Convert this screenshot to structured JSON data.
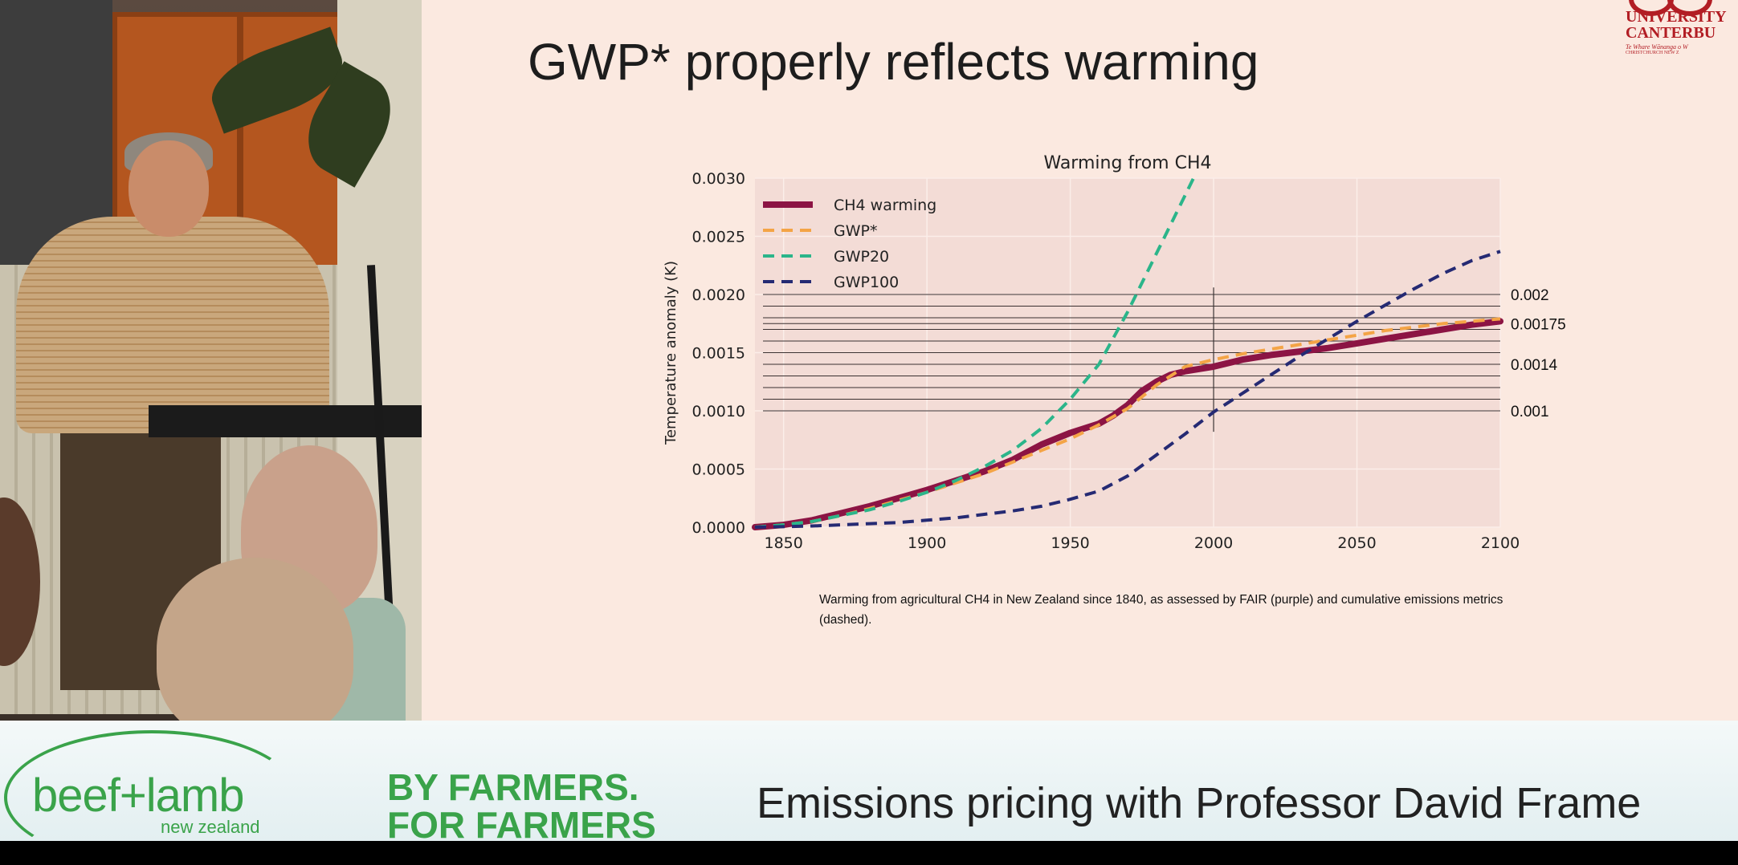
{
  "slide": {
    "title": "GWP* properly reflects warming",
    "caption": "Warming from agricultural CH4 in New Zealand since 1840, as assessed by FAIR (purple) and cumulative emissions metrics (dashed).",
    "logo": {
      "line1": "UNIVERSITY",
      "line2": "CANTERBU",
      "line3": "Te Whare Wānanga o W",
      "line4": "CHRISTCHURCH NEW Z"
    }
  },
  "chart_data": {
    "type": "line",
    "title": "Warming from CH4",
    "ylabel": "Temperature anomaly (K)",
    "xlabel": "",
    "xlim": [
      1840,
      2100
    ],
    "ylim": [
      0,
      0.003
    ],
    "x_ticks": [
      "1850",
      "1900",
      "1950",
      "2000",
      "2050",
      "2100"
    ],
    "y_ticks": [
      "0.0000",
      "0.0005",
      "0.0010",
      "0.0015",
      "0.0020",
      "0.0025",
      "0.0030"
    ],
    "legend_position": "top-left",
    "series": [
      {
        "name": "CH4 warming",
        "color": "#8c1444",
        "style": "solid",
        "x": [
          1840,
          1850,
          1860,
          1870,
          1880,
          1890,
          1900,
          1910,
          1920,
          1930,
          1940,
          1950,
          1960,
          1965,
          1970,
          1975,
          1980,
          1985,
          1990,
          2000,
          2010,
          2020,
          2030,
          2040,
          2050,
          2060,
          2070,
          2080,
          2090,
          2100
        ],
        "y": [
          0.0,
          2e-05,
          6e-05,
          0.00012,
          0.00018,
          0.00025,
          0.00032,
          0.0004,
          0.00048,
          0.00058,
          0.00071,
          0.00081,
          0.00089,
          0.00096,
          0.00105,
          0.00117,
          0.00125,
          0.00131,
          0.00134,
          0.00138,
          0.00144,
          0.00148,
          0.00151,
          0.00154,
          0.00158,
          0.00162,
          0.00166,
          0.0017,
          0.00174,
          0.00177
        ]
      },
      {
        "name": "GWP*",
        "color": "#f4a446",
        "style": "dashed",
        "x": [
          1840,
          1850,
          1860,
          1870,
          1880,
          1890,
          1900,
          1910,
          1920,
          1930,
          1940,
          1950,
          1960,
          1970,
          1980,
          1990,
          2000,
          2010,
          2020,
          2030,
          2040,
          2050,
          2060,
          2070,
          2080,
          2090,
          2100
        ],
        "y": [
          0.0,
          2e-05,
          5e-05,
          0.0001,
          0.00016,
          0.00023,
          0.0003,
          0.00038,
          0.00046,
          0.00056,
          0.00066,
          0.00076,
          0.00088,
          0.00102,
          0.00122,
          0.00138,
          0.00144,
          0.00149,
          0.00153,
          0.00157,
          0.00161,
          0.00165,
          0.00169,
          0.00172,
          0.00175,
          0.00177,
          0.00179
        ]
      },
      {
        "name": "GWP20",
        "color": "#2bb58a",
        "style": "dashed",
        "x": [
          1840,
          1850,
          1860,
          1870,
          1880,
          1890,
          1900,
          1910,
          1920,
          1930,
          1940,
          1950,
          1960,
          1970,
          1980,
          1990,
          1993
        ],
        "y": [
          0.0,
          2e-05,
          5e-05,
          0.0001,
          0.00015,
          0.00022,
          0.0003,
          0.0004,
          0.00052,
          0.00066,
          0.00085,
          0.0011,
          0.0014,
          0.00185,
          0.00235,
          0.00285,
          0.003
        ]
      },
      {
        "name": "GWP100",
        "color": "#252a73",
        "style": "dashed",
        "x": [
          1840,
          1850,
          1860,
          1870,
          1880,
          1890,
          1900,
          1910,
          1920,
          1930,
          1940,
          1950,
          1960,
          1970,
          1980,
          1990,
          2000,
          2010,
          2020,
          2030,
          2040,
          2050,
          2060,
          2070,
          2080,
          2090,
          2100
        ],
        "y": [
          0.0,
          5e-06,
          1e-05,
          2e-05,
          3e-05,
          4e-05,
          6e-05,
          8e-05,
          0.00011,
          0.00014,
          0.00018,
          0.00024,
          0.00031,
          0.00044,
          0.00062,
          0.0008,
          0.00099,
          0.00115,
          0.00131,
          0.00147,
          0.00162,
          0.00177,
          0.00191,
          0.00205,
          0.00218,
          0.00229,
          0.00237
        ]
      }
    ],
    "reference_lines": [
      0.001,
      0.0011,
      0.0012,
      0.0013,
      0.0014,
      0.0015,
      0.0016,
      0.0017,
      0.00175,
      0.0018,
      0.0019,
      0.002
    ],
    "reference_labels": [
      {
        "value": 0.002,
        "text": "0.002"
      },
      {
        "value": 0.00175,
        "text": "0.00175"
      },
      {
        "value": 0.0014,
        "text": "0.0014"
      },
      {
        "value": 0.001,
        "text": "0.001"
      }
    ],
    "vertical_marker": {
      "x": 2000,
      "y_range": [
        0.00082,
        0.00206
      ]
    }
  },
  "banner": {
    "brand": "beef+lamb",
    "brand_sub": "new zealand",
    "slogan_line1": "BY FARMERS.",
    "slogan_line2": "FOR FARMERS",
    "title": "Emissions pricing with Professor David Frame"
  }
}
